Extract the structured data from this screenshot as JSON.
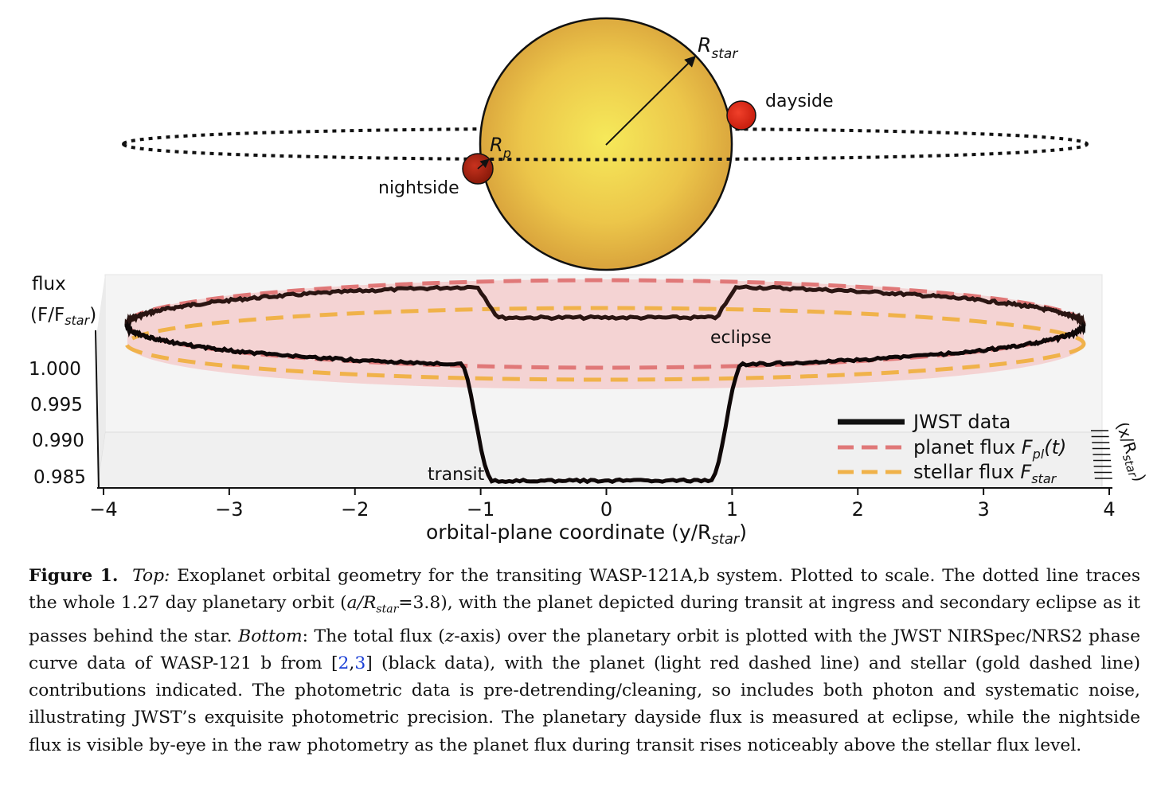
{
  "diagram": {
    "r_star_label": "R",
    "r_star_sub": "star",
    "r_p_label": "R",
    "r_p_sub": "p",
    "dayside_label": "dayside",
    "nightside_label": "nightside"
  },
  "chart_data": {
    "type": "line",
    "title": "",
    "zlabel_line1": "flux",
    "zlabel_line2_main": "(F/F",
    "zlabel_line2_sub": "star",
    "zlabel_line2_end": ")",
    "xlabel_main": "orbital-plane coordinate (y/R",
    "xlabel_sub": "star",
    "xlabel_end": ")",
    "depth_label_main": "(x/R",
    "depth_label_sub": "star",
    "depth_label_end": ")",
    "xlim": [
      -4,
      4
    ],
    "x_ticks": [
      "−4",
      "−3",
      "−2",
      "−1",
      "0",
      "1",
      "2",
      "3",
      "4"
    ],
    "z_ticks": [
      "1.000",
      "0.995",
      "0.990",
      "0.985"
    ],
    "annotations": {
      "eclipse": "eclipse",
      "transit": "transit"
    },
    "orbit_semi_major_axis": 3.8,
    "series": [
      {
        "name": "JWST data",
        "color": "#111111",
        "description_points": [
          {
            "y": -3.8,
            "flux": 1.0009
          },
          {
            "y": -1.1,
            "flux": 1.0001
          },
          {
            "y": -0.95,
            "flux": 0.9851
          },
          {
            "y": 0.0,
            "flux": 0.9848
          },
          {
            "y": 0.85,
            "flux": 0.985
          },
          {
            "y": 1.05,
            "flux": 1.0001
          },
          {
            "y": 3.8,
            "flux": 1.0009
          }
        ]
      },
      {
        "name": "planet flux ",
        "name_italic": "F",
        "name_sub": "pl",
        "name_end": "(t)",
        "color": "#e07878"
      },
      {
        "name": "stellar flux ",
        "name_italic": "F",
        "name_sub": "star",
        "name_end": "",
        "color": "#f0b24a"
      }
    ],
    "legend": {
      "jwst": "JWST data",
      "planet_main": "planet flux ",
      "planet_ital": "F",
      "planet_sub": "pl",
      "planet_end": "(t)",
      "stellar_main": "stellar flux ",
      "stellar_ital": "F",
      "stellar_sub": "star"
    }
  },
  "caption": {
    "label": "Figure 1.",
    "top_label": "Top:",
    "part1": " Exoplanet orbital geometry for the transiting WASP-121A,b system. Plotted to scale. The dotted line traces the whole 1.27 day planetary orbit (",
    "a_over": "a/R",
    "a_sub": "star",
    "a_eq": "=3.8), with the planet depicted during transit at ingress and secondary eclipse as it passes behind the star. ",
    "bottom_label": "Bottom",
    "part2": ": The total flux (",
    "z_axis": "z",
    "part3": "-axis) over the planetary orbit is plotted with the JWST NIRSpec/NRS2 phase curve data of WASP-121 b from [",
    "ref1": "2",
    "comma": ",",
    "ref2": "3",
    "part4": "] (black data), with the planet (light red dashed line) and stellar (gold dashed line) contributions indicated. The photometric data is pre-detrending/cleaning, so includes both photon and systematic noise, illustrating JWST’s exquisite photometric precision. The planetary dayside flux is measured at eclipse, while the nightside flux is visible by-eye in the raw photometry as the planet flux during transit rises noticeably above the stellar flux level."
  }
}
